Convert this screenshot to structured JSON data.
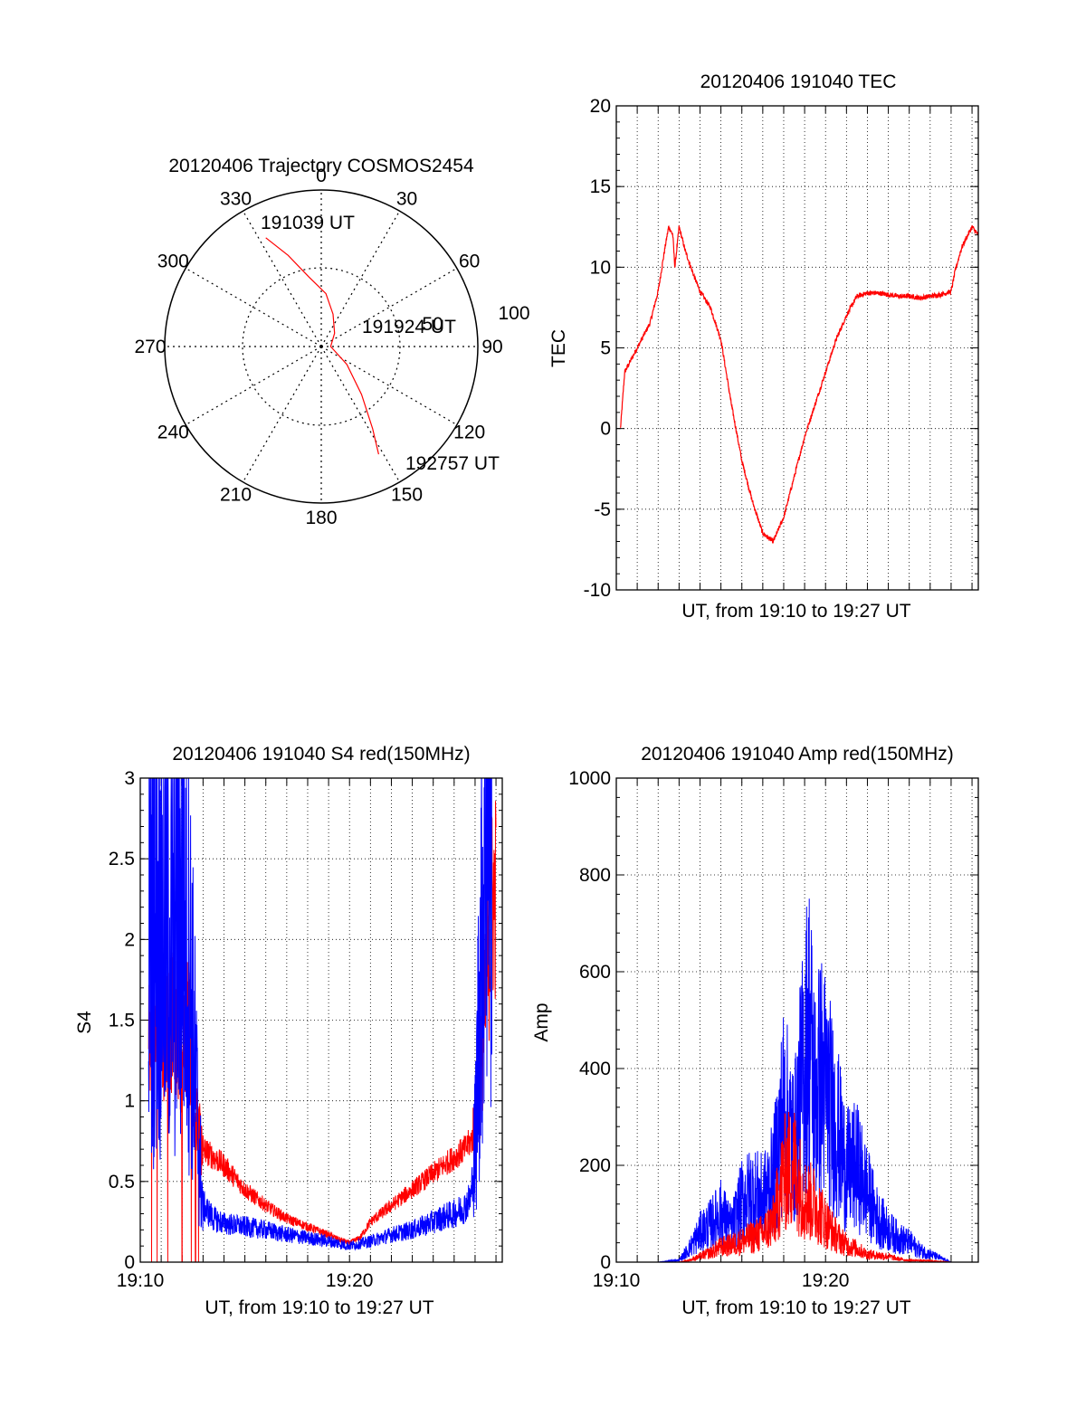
{
  "chart_data": [
    {
      "type": "polar-trajectory",
      "title": "20120406 Trajectory COSMOS2454",
      "angle_labels": [
        "0",
        "30",
        "60",
        "90",
        "120",
        "150",
        "180",
        "210",
        "240",
        "270",
        "300",
        "330"
      ],
      "radius_labels": [
        "50",
        "100"
      ],
      "trajectory": {
        "color": "#ff0000",
        "points": [
          [
            333,
            0.78
          ],
          [
            340,
            0.62
          ],
          [
            350,
            0.45
          ],
          [
            5,
            0.34
          ],
          [
            20,
            0.22
          ],
          [
            45,
            0.12
          ],
          [
            90,
            0.06
          ],
          [
            125,
            0.2
          ],
          [
            140,
            0.4
          ],
          [
            148,
            0.62
          ],
          [
            152,
            0.78
          ]
        ]
      },
      "annotations": [
        {
          "text": "191039 UT",
          "az": 333,
          "r": 0.78
        },
        {
          "text": "191924 UT",
          "az": 90,
          "r": 0.06
        },
        {
          "text": "192757 UT",
          "az": 152,
          "r": 0.78
        }
      ]
    },
    {
      "type": "line",
      "title": "20120406 191040 TEC",
      "xlabel": "UT, from 19:10 to 19:27 UT",
      "ylabel": "TEC",
      "xlim": [
        0,
        17.3
      ],
      "ylim": [
        -10,
        20
      ],
      "yticks": [
        -10,
        -5,
        0,
        5,
        10,
        15,
        20
      ],
      "show_xtick_labels": false,
      "grid": true,
      "series": [
        {
          "color": "#ff0000",
          "noise": 0.25,
          "x": [
            0.2,
            0.4,
            0.8,
            1.2,
            1.6,
            2.0,
            2.3,
            2.5,
            2.7,
            2.8,
            3.0,
            3.3,
            3.7,
            4.0,
            4.5,
            5.0,
            5.5,
            6.0,
            6.5,
            7.0,
            7.5,
            8.0,
            8.5,
            9.0,
            9.5,
            10.0,
            10.5,
            11.0,
            11.5,
            12.0,
            12.5,
            13.0,
            13.5,
            14.0,
            14.5,
            15.0,
            15.5,
            16.0,
            16.2,
            16.5,
            16.8,
            17.0,
            17.3
          ],
          "y": [
            0,
            3.5,
            4.5,
            5.5,
            6.5,
            8.5,
            11,
            12.5,
            12,
            10,
            12.5,
            11,
            9.5,
            8.5,
            7.5,
            5.5,
            1.5,
            -2,
            -4.5,
            -6.5,
            -7,
            -5.5,
            -3,
            -0.5,
            1.5,
            3.5,
            5.5,
            7,
            8.2,
            8.4,
            8.4,
            8.3,
            8.2,
            8.2,
            8.1,
            8.2,
            8.3,
            8.5,
            9.8,
            11.2,
            12,
            12.5,
            12
          ]
        }
      ]
    },
    {
      "type": "line",
      "title": "20120406 191040 S4 red(150MHz)",
      "xlabel": "UT, from 19:10 to 19:27 UT",
      "ylabel": "S4",
      "xlim": [
        0,
        17.3
      ],
      "ylim": [
        0,
        3
      ],
      "yticks": [
        0,
        0.5,
        1,
        1.5,
        2,
        2.5,
        3
      ],
      "yticklabels": [
        "0",
        "0.5",
        "1",
        "1.5",
        "2",
        "2.5",
        "3"
      ],
      "xticks": [
        0,
        10
      ],
      "xticklabels": [
        "19:10",
        "19:20"
      ],
      "grid": true,
      "series": [
        {
          "color": "#ff0000",
          "noise": 0.25,
          "x": [
            0.4,
            1.0,
            1.6,
            2.0,
            2.3,
            2.6,
            3.0,
            4.0,
            5.0,
            6.0,
            7.0,
            8.0,
            9.0,
            9.5,
            10.0,
            10.5,
            11.0,
            12.0,
            13.0,
            14.0,
            14.5,
            15.0,
            15.5,
            15.8,
            16.0,
            16.2,
            16.5,
            16.8,
            17.0
          ],
          "y": [
            1.5,
            1.4,
            1.5,
            1.3,
            1.5,
            0.9,
            0.7,
            0.6,
            0.45,
            0.35,
            0.27,
            0.22,
            0.17,
            0.14,
            0.12,
            0.15,
            0.25,
            0.35,
            0.45,
            0.55,
            0.6,
            0.65,
            0.7,
            0.75,
            0.8,
            1.0,
            1.6,
            2.2,
            2.3
          ]
        },
        {
          "color": "#0000ff",
          "noise": 0.6,
          "x": [
            0.4,
            1.0,
            1.5,
            2.0,
            2.4,
            2.8,
            3.0,
            3.5,
            4.0,
            5.0,
            6.0,
            7.0,
            8.0,
            9.0,
            10.0,
            11.0,
            12.0,
            13.0,
            14.0,
            14.5,
            15.0,
            15.5,
            15.8,
            16.0,
            16.2,
            16.5,
            16.8
          ],
          "y": [
            2.0,
            2.1,
            1.9,
            2.2,
            1.8,
            0.7,
            0.35,
            0.27,
            0.24,
            0.22,
            0.2,
            0.17,
            0.15,
            0.13,
            0.1,
            0.13,
            0.17,
            0.2,
            0.25,
            0.28,
            0.3,
            0.34,
            0.4,
            0.7,
            1.6,
            2.8,
            3.0
          ]
        }
      ]
    },
    {
      "type": "line",
      "title": "20120406 191040 Amp red(150MHz)",
      "xlabel": "UT, from 19:10 to 19:27 UT",
      "ylabel": "Amp",
      "xlim": [
        0,
        17.3
      ],
      "ylim": [
        0,
        1000
      ],
      "yticks": [
        0,
        200,
        400,
        600,
        800,
        1000
      ],
      "yticklabels": [
        "0",
        "200",
        "400",
        "600",
        "800",
        "1000"
      ],
      "xticks": [
        0,
        10
      ],
      "xticklabels": [
        "19:10",
        "19:20"
      ],
      "grid": true,
      "series": [
        {
          "color": "#0000ff",
          "noise": 0.45,
          "x": [
            0.5,
            2.0,
            3.0,
            3.5,
            4.0,
            4.5,
            5.0,
            5.5,
            6.0,
            6.5,
            7.0,
            7.5,
            8.0,
            8.5,
            9.0,
            9.2,
            9.5,
            9.8,
            10.0,
            10.5,
            11.0,
            11.5,
            12.0,
            12.5,
            13.0,
            13.5,
            14.0,
            14.5,
            15.0,
            15.5,
            16.0,
            16.5
          ],
          "y": [
            0,
            0,
            5,
            35,
            75,
            95,
            125,
            85,
            155,
            175,
            160,
            210,
            390,
            290,
            510,
            600,
            420,
            470,
            440,
            340,
            230,
            240,
            175,
            110,
            80,
            60,
            50,
            30,
            20,
            10,
            0,
            0
          ]
        },
        {
          "color": "#ff0000",
          "noise": 0.4,
          "x": [
            0.5,
            2.0,
            3.0,
            3.5,
            4.0,
            4.5,
            5.0,
            5.5,
            6.0,
            6.5,
            7.0,
            7.5,
            8.0,
            8.5,
            9.0,
            9.5,
            10.0,
            10.5,
            11.0,
            11.5,
            12.0,
            12.5,
            13.0,
            13.5,
            14.0,
            14.5,
            15.0,
            15.5,
            16.0,
            16.5
          ],
          "y": [
            0,
            0,
            0,
            5,
            15,
            25,
            40,
            45,
            55,
            65,
            75,
            105,
            230,
            250,
            165,
            150,
            105,
            70,
            45,
            35,
            20,
            18,
            15,
            8,
            5,
            4,
            3,
            2,
            0,
            0
          ]
        }
      ]
    }
  ]
}
